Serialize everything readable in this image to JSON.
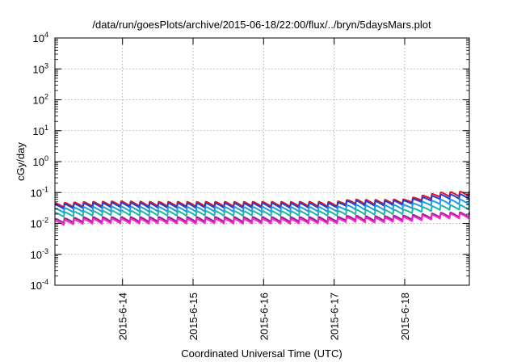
{
  "chart_data": {
    "type": "line",
    "title": "/data/run/goesPlots/archive/2015-06-18/22:00/flux/../bryn/5daysMars.plot",
    "xlabel": "Coordinated Universal Time (UTC)",
    "ylabel": "cGy/day",
    "yscale": "log",
    "ylim": [
      0.0001,
      10000
    ],
    "xlim": [
      "2015-06-13T01:00",
      "2015-06-18T22:00"
    ],
    "grid": true,
    "ytick_labels": [
      {
        "base": "10",
        "exp": "-4"
      },
      {
        "base": "10",
        "exp": "-3"
      },
      {
        "base": "10",
        "exp": "-2"
      },
      {
        "base": "10",
        "exp": "-1"
      },
      {
        "base": "10",
        "exp": "0"
      },
      {
        "base": "10",
        "exp": "1"
      },
      {
        "base": "10",
        "exp": "2"
      },
      {
        "base": "10",
        "exp": "3"
      },
      {
        "base": "10",
        "exp": "4"
      }
    ],
    "xticks": [
      "2015-6-14",
      "2015-6-15",
      "2015-6-16",
      "2015-6-17",
      "2015-6-18"
    ],
    "series": [
      {
        "color": "#e0141c",
        "x": [
          "2015-06-13T01:00",
          "2015-06-13T12:00",
          "2015-06-14T00:00",
          "2015-06-14T12:00",
          "2015-06-15T00:00",
          "2015-06-15T12:00",
          "2015-06-16T00:00",
          "2015-06-16T12:00",
          "2015-06-17T00:00",
          "2015-06-17T06:00",
          "2015-06-17T12:00",
          "2015-06-18T00:00",
          "2015-06-18T06:00",
          "2015-06-18T12:00",
          "2015-06-18T22:00"
        ],
        "y": [
          0.045,
          0.05,
          0.052,
          0.05,
          0.05,
          0.05,
          0.05,
          0.05,
          0.05,
          0.06,
          0.058,
          0.06,
          0.08,
          0.1,
          0.11
        ]
      },
      {
        "color": "#1f3fd8",
        "x": [
          "2015-06-13T01:00",
          "2015-06-13T12:00",
          "2015-06-14T00:00",
          "2015-06-14T12:00",
          "2015-06-15T00:00",
          "2015-06-15T12:00",
          "2015-06-16T00:00",
          "2015-06-16T12:00",
          "2015-06-17T00:00",
          "2015-06-17T06:00",
          "2015-06-17T12:00",
          "2015-06-18T00:00",
          "2015-06-18T06:00",
          "2015-06-18T12:00",
          "2015-06-18T22:00"
        ],
        "y": [
          0.04,
          0.045,
          0.047,
          0.045,
          0.045,
          0.045,
          0.045,
          0.045,
          0.045,
          0.055,
          0.052,
          0.055,
          0.07,
          0.085,
          0.09
        ]
      },
      {
        "color": "#1e9be0",
        "x": [
          "2015-06-13T01:00",
          "2015-06-13T12:00",
          "2015-06-14T00:00",
          "2015-06-14T12:00",
          "2015-06-15T00:00",
          "2015-06-15T12:00",
          "2015-06-16T00:00",
          "2015-06-16T12:00",
          "2015-06-17T00:00",
          "2015-06-17T06:00",
          "2015-06-17T12:00",
          "2015-06-18T00:00",
          "2015-06-18T06:00",
          "2015-06-18T12:00",
          "2015-06-18T22:00"
        ],
        "y": [
          0.03,
          0.034,
          0.035,
          0.034,
          0.034,
          0.034,
          0.034,
          0.034,
          0.034,
          0.04,
          0.038,
          0.04,
          0.05,
          0.058,
          0.06
        ]
      },
      {
        "color": "#21b3a8",
        "x": [
          "2015-06-13T01:00",
          "2015-06-13T12:00",
          "2015-06-14T00:00",
          "2015-06-14T12:00",
          "2015-06-15T00:00",
          "2015-06-15T12:00",
          "2015-06-16T00:00",
          "2015-06-16T12:00",
          "2015-06-17T00:00",
          "2015-06-17T06:00",
          "2015-06-17T12:00",
          "2015-06-18T00:00",
          "2015-06-18T06:00",
          "2015-06-18T12:00",
          "2015-06-18T22:00"
        ],
        "y": [
          0.022,
          0.025,
          0.026,
          0.025,
          0.025,
          0.025,
          0.025,
          0.025,
          0.025,
          0.028,
          0.027,
          0.028,
          0.034,
          0.038,
          0.04
        ]
      },
      {
        "color": "#8a2a86",
        "x": [
          "2015-06-13T01:00",
          "2015-06-13T12:00",
          "2015-06-14T00:00",
          "2015-06-14T12:00",
          "2015-06-15T00:00",
          "2015-06-15T12:00",
          "2015-06-16T00:00",
          "2015-06-16T12:00",
          "2015-06-17T00:00",
          "2015-06-17T06:00",
          "2015-06-17T12:00",
          "2015-06-18T00:00",
          "2015-06-18T06:00",
          "2015-06-18T12:00",
          "2015-06-18T22:00"
        ],
        "y": [
          0.014,
          0.016,
          0.016,
          0.016,
          0.016,
          0.016,
          0.016,
          0.016,
          0.016,
          0.018,
          0.017,
          0.018,
          0.02,
          0.022,
          0.023
        ]
      },
      {
        "color": "#ff1fd4",
        "x": [
          "2015-06-13T01:00",
          "2015-06-13T12:00",
          "2015-06-14T00:00",
          "2015-06-14T12:00",
          "2015-06-15T00:00",
          "2015-06-15T12:00",
          "2015-06-16T00:00",
          "2015-06-16T12:00",
          "2015-06-17T00:00",
          "2015-06-17T06:00",
          "2015-06-17T12:00",
          "2015-06-18T00:00",
          "2015-06-18T06:00",
          "2015-06-18T12:00",
          "2015-06-18T22:00"
        ],
        "y": [
          0.012,
          0.014,
          0.014,
          0.014,
          0.014,
          0.014,
          0.014,
          0.014,
          0.014,
          0.016,
          0.015,
          0.016,
          0.018,
          0.02,
          0.021
        ]
      }
    ]
  }
}
